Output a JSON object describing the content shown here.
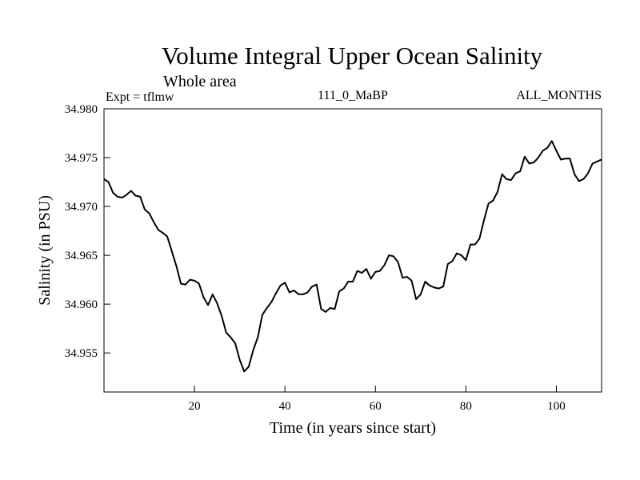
{
  "chart_data": {
    "type": "line",
    "title": "Volume Integral Upper Ocean Salinity",
    "subtitle": "Whole area",
    "left_label": "Expt = tflmw",
    "center_label": "111_0_MaBP",
    "right_label": "ALL_MONTHS",
    "xlabel": "Time (in years since start)",
    "ylabel": "Salinity (in PSU)",
    "xlim": [
      0,
      110
    ],
    "ylim": [
      34.951,
      34.98
    ],
    "xticks": [
      20,
      40,
      60,
      80,
      100
    ],
    "yticks": [
      34.955,
      34.96,
      34.965,
      34.97,
      34.975,
      34.98
    ],
    "grid": false,
    "series": [
      {
        "name": "salinity",
        "x": [
          0,
          1,
          2,
          3,
          4,
          5,
          6,
          7,
          8,
          9,
          10,
          11,
          12,
          13,
          14,
          15,
          16,
          17,
          18,
          19,
          20,
          21,
          22,
          23,
          24,
          25,
          26,
          27,
          28,
          29,
          30,
          31,
          32,
          33,
          34,
          35,
          36,
          37,
          38,
          39,
          40,
          41,
          42,
          43,
          44,
          45,
          46,
          47,
          48,
          49,
          50,
          51,
          52,
          53,
          54,
          55,
          56,
          57,
          58,
          59,
          60,
          61,
          62,
          63,
          64,
          65,
          66,
          67,
          68,
          69,
          70,
          71,
          72,
          73,
          74,
          75,
          76,
          77,
          78,
          79,
          80,
          81,
          82,
          83,
          84,
          85,
          86,
          87,
          88,
          89,
          90,
          91,
          92,
          93,
          94,
          95,
          96,
          97,
          98,
          99,
          100,
          101,
          102,
          103,
          104,
          105,
          106,
          107,
          108,
          109,
          110
        ],
        "y": [
          34.9728,
          34.9725,
          34.9714,
          34.971,
          34.9709,
          34.9712,
          34.9716,
          34.9711,
          34.971,
          34.9697,
          34.9693,
          34.9684,
          34.9676,
          34.9673,
          34.9669,
          34.9654,
          34.9639,
          34.9621,
          34.962,
          34.9625,
          34.9624,
          34.9621,
          34.9607,
          34.9599,
          34.961,
          34.9601,
          34.9588,
          34.9571,
          34.9566,
          34.956,
          34.9543,
          34.9531,
          34.9536,
          34.9553,
          34.9566,
          34.9589,
          34.9596,
          34.9602,
          34.9611,
          34.9619,
          34.9622,
          34.9612,
          34.9614,
          34.961,
          34.961,
          34.9612,
          34.9618,
          34.962,
          34.9595,
          34.9592,
          34.9596,
          34.9595,
          34.9613,
          34.9616,
          34.9623,
          34.9623,
          34.9634,
          34.9632,
          34.9636,
          34.9626,
          34.9633,
          34.9634,
          34.964,
          34.965,
          34.9649,
          34.9643,
          34.9627,
          34.9628,
          34.9624,
          34.9605,
          34.961,
          34.9623,
          34.9619,
          34.9617,
          34.9616,
          34.9618,
          34.9641,
          34.9644,
          34.9652,
          34.965,
          34.9645,
          34.9661,
          34.9661,
          34.9667,
          34.9686,
          34.9703,
          34.9706,
          34.9715,
          34.9733,
          34.9728,
          34.9727,
          34.9734,
          34.9736,
          34.9751,
          34.9744,
          34.9745,
          34.975,
          34.9757,
          34.976,
          34.9767,
          34.9757,
          34.9748,
          34.9749,
          34.9749,
          34.9733,
          34.9726,
          34.9728,
          34.9734,
          34.9744,
          34.9746,
          34.9748
        ]
      }
    ]
  }
}
